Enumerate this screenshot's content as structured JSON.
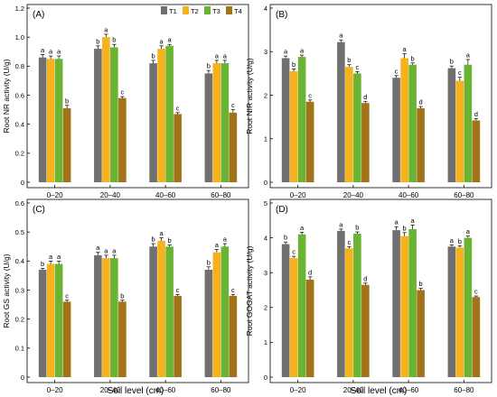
{
  "colors": {
    "T1": "#707070",
    "T2": "#F5B21C",
    "T3": "#6BB332",
    "T4": "#A27318"
  },
  "legend_position": "top-right of panel A",
  "xlabel_shared": "Soil level (cm)",
  "chart_data": [
    {
      "type": "bar",
      "panel": "(A)",
      "ylabel": "Root NR activity (U/g)",
      "xlabel": "",
      "ylim": [
        0,
        1.2
      ],
      "yticks": [
        "0",
        "0.2",
        "0.4",
        "0.6",
        "0.8",
        "1.0",
        "1.2"
      ],
      "categories": [
        "0–20",
        "20–40",
        "40–60",
        "60–80"
      ],
      "legend": [
        "T1",
        "T2",
        "T3",
        "T4"
      ],
      "series": [
        {
          "name": "T1",
          "values": [
            0.86,
            0.92,
            0.82,
            0.75
          ],
          "errors": [
            0.02,
            0.02,
            0.02,
            0.02
          ],
          "labels": [
            "a",
            "b",
            "b",
            "b"
          ]
        },
        {
          "name": "T2",
          "values": [
            0.85,
            1.0,
            0.92,
            0.82
          ],
          "errors": [
            0.02,
            0.02,
            0.02,
            0.02
          ],
          "labels": [
            "a",
            "a",
            "a",
            "a"
          ]
        },
        {
          "name": "T3",
          "values": [
            0.85,
            0.93,
            0.94,
            0.82
          ],
          "errors": [
            0.02,
            0.02,
            0.01,
            0.02
          ],
          "labels": [
            "a",
            "b",
            "a",
            "a"
          ]
        },
        {
          "name": "T4",
          "values": [
            0.51,
            0.58,
            0.47,
            0.48
          ],
          "errors": [
            0.02,
            0.01,
            0.01,
            0.02
          ],
          "labels": [
            "b",
            "c",
            "c",
            "c"
          ]
        }
      ]
    },
    {
      "type": "bar",
      "panel": "(B)",
      "ylabel": "Root NIR activity (U/g)",
      "xlabel": "",
      "ylim": [
        0,
        4
      ],
      "yticks": [
        "0",
        "1",
        "2",
        "3",
        "4"
      ],
      "categories": [
        "0–20",
        "20–40",
        "40–60",
        "60–80"
      ],
      "series": [
        {
          "name": "T1",
          "values": [
            2.85,
            3.22,
            2.4,
            2.62
          ],
          "errors": [
            0.05,
            0.05,
            0.05,
            0.05
          ],
          "labels": [
            "a",
            "a",
            "c",
            "b"
          ]
        },
        {
          "name": "T2",
          "values": [
            2.55,
            2.65,
            2.85,
            2.33
          ],
          "errors": [
            0.05,
            0.05,
            0.1,
            0.08
          ],
          "labels": [
            "b",
            "b",
            "a",
            "c"
          ]
        },
        {
          "name": "T3",
          "values": [
            2.88,
            2.5,
            2.7,
            2.7
          ],
          "errors": [
            0.04,
            0.04,
            0.04,
            0.12
          ],
          "labels": [
            "a",
            "c",
            "b",
            "a"
          ]
        },
        {
          "name": "T4",
          "values": [
            1.85,
            1.82,
            1.7,
            1.42
          ],
          "errors": [
            0.04,
            0.04,
            0.04,
            0.04
          ],
          "labels": [
            "c",
            "d",
            "d",
            "d"
          ]
        }
      ]
    },
    {
      "type": "bar",
      "panel": "(C)",
      "ylabel": "Root GS activity (U/g)",
      "xlabel": "Soil level (cm)",
      "ylim": [
        0,
        0.6
      ],
      "yticks": [
        "0",
        "0.1",
        "0.2",
        "0.3",
        "0.4",
        "0.5",
        "0.6"
      ],
      "categories": [
        "0–20",
        "20–40",
        "40–60",
        "60–80"
      ],
      "series": [
        {
          "name": "T1",
          "values": [
            0.37,
            0.42,
            0.45,
            0.37
          ],
          "errors": [
            0.005,
            0.01,
            0.01,
            0.01
          ],
          "labels": [
            "b",
            "a",
            "b",
            "b"
          ]
        },
        {
          "name": "T2",
          "values": [
            0.39,
            0.41,
            0.47,
            0.43
          ],
          "errors": [
            0.01,
            0.01,
            0.01,
            0.01
          ],
          "labels": [
            "a",
            "a",
            "a",
            "a"
          ]
        },
        {
          "name": "T3",
          "values": [
            0.39,
            0.41,
            0.45,
            0.45
          ],
          "errors": [
            0.01,
            0.01,
            0.005,
            0.01
          ],
          "labels": [
            "a",
            "a",
            "b",
            "a"
          ]
        },
        {
          "name": "T4",
          "values": [
            0.26,
            0.26,
            0.28,
            0.28
          ],
          "errors": [
            0.005,
            0.005,
            0.005,
            0.005
          ],
          "labels": [
            "c",
            "b",
            "c",
            "c"
          ]
        }
      ]
    },
    {
      "type": "bar",
      "panel": "(D)",
      "ylabel": "Root GOGAT activity (U/g)",
      "xlabel": "Soil level (cm)",
      "ylim": [
        0,
        5
      ],
      "yticks": [
        "0",
        "1",
        "2",
        "3",
        "4",
        "5"
      ],
      "categories": [
        "0–20",
        "20–40",
        "40–60",
        "60–80"
      ],
      "series": [
        {
          "name": "T1",
          "values": [
            3.82,
            4.2,
            4.22,
            3.75
          ],
          "errors": [
            0.06,
            0.05,
            0.1,
            0.05
          ],
          "labels": [
            "b",
            "a",
            "a",
            "a"
          ]
        },
        {
          "name": "T2",
          "values": [
            3.42,
            3.7,
            4.05,
            3.72
          ],
          "errors": [
            0.05,
            0.05,
            0.1,
            0.05
          ],
          "labels": [
            "c",
            "c",
            "b",
            "b"
          ]
        },
        {
          "name": "T3",
          "values": [
            4.1,
            4.12,
            4.25,
            4.0
          ],
          "errors": [
            0.06,
            0.05,
            0.12,
            0.05
          ],
          "labels": [
            "a",
            "b",
            "a",
            "a"
          ]
        },
        {
          "name": "T4",
          "values": [
            2.8,
            2.65,
            2.5,
            2.3
          ],
          "errors": [
            0.08,
            0.05,
            0.05,
            0.03
          ],
          "labels": [
            "d",
            "d",
            "b",
            "c"
          ]
        }
      ]
    }
  ]
}
